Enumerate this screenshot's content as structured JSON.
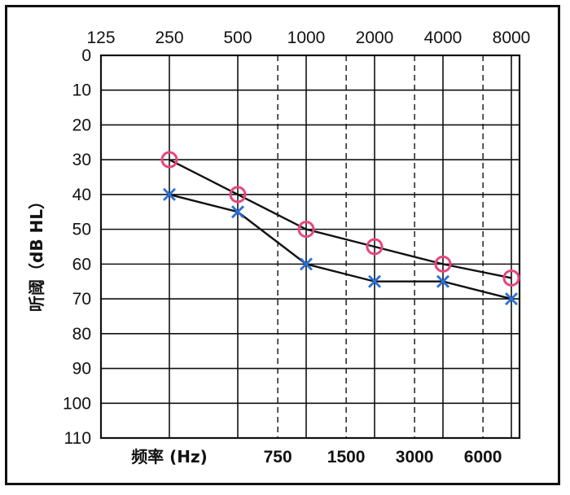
{
  "chart_data": {
    "type": "line",
    "title": "",
    "xlabel": "频率 (Hz)",
    "ylabel": "听阈（dB HL）",
    "x_top_ticks": [
      "125",
      "250",
      "500",
      "1000",
      "2000",
      "4000",
      "8000"
    ],
    "x_bottom_ticks": [
      "750",
      "1500",
      "3000",
      "6000"
    ],
    "y_ticks": [
      "0",
      "10",
      "20",
      "30",
      "40",
      "50",
      "60",
      "70",
      "80",
      "90",
      "100",
      "110"
    ],
    "ylim": [
      0,
      110
    ],
    "y_inverted": true,
    "x_scale": "log2",
    "x": [
      "250",
      "500",
      "1000",
      "2000",
      "4000",
      "8000"
    ],
    "series": [
      {
        "marker": "circle",
        "color": "#e8457a",
        "values": [
          30,
          40,
          50,
          55,
          60,
          64
        ]
      },
      {
        "marker": "cross",
        "color": "#2a6fd8",
        "values": [
          40,
          45,
          60,
          65,
          65,
          70
        ]
      }
    ],
    "grid": true,
    "dashed_gridlines_at": [
      "750",
      "1500",
      "3000",
      "6000"
    ],
    "line_color": "#111111"
  }
}
